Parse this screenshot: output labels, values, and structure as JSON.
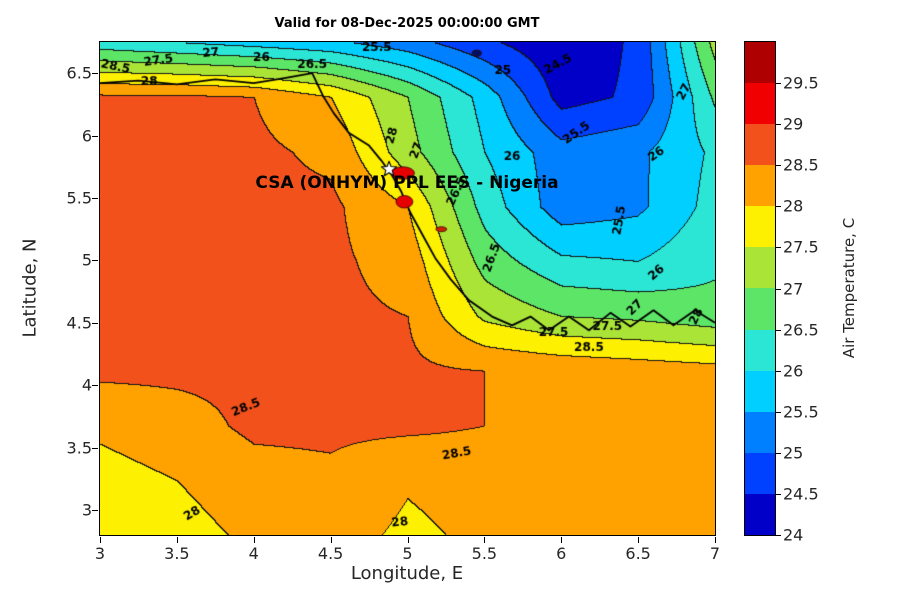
{
  "chart_data": {
    "type": "heatmap",
    "title": "Valid for 08-Dec-2025 00:00:00 GMT",
    "annotation": "CSA (ONHYM) PPL EES - Nigeria",
    "xlabel": "Longitude, E",
    "ylabel": "Latitude, N",
    "xlim": [
      3,
      7
    ],
    "ylim": [
      2.8,
      6.75
    ],
    "xticks": [
      3,
      3.5,
      4,
      4.5,
      5,
      5.5,
      6,
      6.5,
      7
    ],
    "yticks": [
      3,
      3.5,
      4,
      4.5,
      5,
      5.5,
      6,
      6.5
    ],
    "grid": {
      "lon": [
        3,
        3.5,
        4,
        4.5,
        5,
        5.5,
        6,
        6.5,
        7
      ],
      "lat": [
        6.75,
        6.31,
        5.87,
        5.43,
        4.99,
        4.56,
        4.12,
        3.68,
        3.24,
        2.8
      ],
      "temperature": [
        [
          26.2,
          26.0,
          25.8,
          25.6,
          25.2,
          24.6,
          24.1,
          24.6,
          27.2
        ],
        [
          28.6,
          28.6,
          28.5,
          28.0,
          27.0,
          25.8,
          24.3,
          24.6,
          26.6
        ],
        [
          28.6,
          28.6,
          28.6,
          28.4,
          27.2,
          26.0,
          25.2,
          25.4,
          26.1
        ],
        [
          28.6,
          28.6,
          28.6,
          28.6,
          28.0,
          26.3,
          25.2,
          25.4,
          26.2
        ],
        [
          28.6,
          28.6,
          28.6,
          28.6,
          28.3,
          26.8,
          26.1,
          26.0,
          26.4
        ],
        [
          28.6,
          28.6,
          28.6,
          28.6,
          28.5,
          27.4,
          27.0,
          26.9,
          26.7
        ],
        [
          28.6,
          28.6,
          28.6,
          28.6,
          28.6,
          28.5,
          28.4,
          28.3,
          28.2
        ],
        [
          28.1,
          28.3,
          28.6,
          28.6,
          28.6,
          28.5,
          28.3,
          28.2,
          28.2
        ],
        [
          27.8,
          28.0,
          28.3,
          28.4,
          28.05,
          28.2,
          28.2,
          28.2,
          28.2
        ],
        [
          27.6,
          27.8,
          28.1,
          28.2,
          27.9,
          28.1,
          28.2,
          28.2,
          28.2
        ]
      ]
    },
    "levels": [
      24,
      24.5,
      25,
      25.5,
      26,
      26.5,
      27,
      27.5,
      28,
      28.5,
      29,
      29.5,
      30
    ],
    "level_colors": [
      "#0000C8",
      "#0040FF",
      "#0080FF",
      "#00CFFF",
      "#2BE6D5",
      "#5CE566",
      "#AAE437",
      "#FDF000",
      "#FFA200",
      "#F2511B",
      "#F00000",
      "#AE0000"
    ],
    "contour_line_color": "#141414",
    "colorbar": {
      "label": "Air Temperature, C",
      "range": [
        24,
        30
      ],
      "ticks": [
        24,
        24.5,
        25,
        25.5,
        26,
        26.5,
        27,
        27.5,
        28,
        28.5,
        29,
        29.5
      ]
    },
    "contour_labels": [
      {
        "text": "28.5",
        "lon": 3.1,
        "lat": 6.55,
        "rot": 12
      },
      {
        "text": "28",
        "lon": 3.32,
        "lat": 6.43,
        "rot": 0
      },
      {
        "text": "27.5",
        "lon": 3.38,
        "lat": 6.6,
        "rot": -8
      },
      {
        "text": "27",
        "lon": 3.72,
        "lat": 6.66,
        "rot": -5
      },
      {
        "text": "26",
        "lon": 4.05,
        "lat": 6.62,
        "rot": 0
      },
      {
        "text": "26.5",
        "lon": 4.38,
        "lat": 6.57,
        "rot": 0
      },
      {
        "text": "25.5",
        "lon": 4.8,
        "lat": 6.7,
        "rot": 0
      },
      {
        "text": "25",
        "lon": 5.62,
        "lat": 6.52,
        "rot": 0
      },
      {
        "text": "24.5",
        "lon": 5.98,
        "lat": 6.57,
        "rot": -28
      },
      {
        "text": "27",
        "lon": 6.8,
        "lat": 6.35,
        "rot": -62
      },
      {
        "text": "25.5",
        "lon": 6.1,
        "lat": 6.02,
        "rot": -35
      },
      {
        "text": "26",
        "lon": 5.68,
        "lat": 5.83,
        "rot": 0
      },
      {
        "text": "26",
        "lon": 6.62,
        "lat": 5.85,
        "rot": -35
      },
      {
        "text": "28",
        "lon": 4.9,
        "lat": 6.0,
        "rot": -75
      },
      {
        "text": "27",
        "lon": 5.06,
        "lat": 5.88,
        "rot": -70
      },
      {
        "text": "26.5",
        "lon": 5.32,
        "lat": 5.55,
        "rot": -65
      },
      {
        "text": "25.5",
        "lon": 6.38,
        "lat": 5.32,
        "rot": -80
      },
      {
        "text": "26",
        "lon": 6.62,
        "lat": 4.9,
        "rot": -40
      },
      {
        "text": "26.5",
        "lon": 5.55,
        "lat": 5.02,
        "rot": -70
      },
      {
        "text": "27",
        "lon": 6.48,
        "lat": 4.62,
        "rot": -45
      },
      {
        "text": "27.5",
        "lon": 6.3,
        "lat": 4.47,
        "rot": 0
      },
      {
        "text": "28",
        "lon": 6.88,
        "lat": 4.55,
        "rot": -65
      },
      {
        "text": "27.5",
        "lon": 5.95,
        "lat": 4.42,
        "rot": 0
      },
      {
        "text": "28.5",
        "lon": 6.18,
        "lat": 4.3,
        "rot": 0
      },
      {
        "text": "28.5",
        "lon": 3.95,
        "lat": 3.82,
        "rot": -22
      },
      {
        "text": "28.5",
        "lon": 5.32,
        "lat": 3.45,
        "rot": -10
      },
      {
        "text": "28",
        "lon": 3.6,
        "lat": 2.97,
        "rot": -32
      },
      {
        "text": "28",
        "lon": 4.95,
        "lat": 2.9,
        "rot": -6
      }
    ],
    "coastline": [
      [
        3.0,
        6.42
      ],
      [
        3.25,
        6.44
      ],
      [
        3.5,
        6.41
      ],
      [
        3.75,
        6.45
      ],
      [
        4.0,
        6.42
      ],
      [
        4.2,
        6.46
      ],
      [
        4.38,
        6.5
      ],
      [
        4.45,
        6.32
      ],
      [
        4.52,
        6.18
      ],
      [
        4.62,
        6.02
      ],
      [
        4.75,
        5.92
      ],
      [
        4.83,
        5.8
      ],
      [
        4.9,
        5.68
      ],
      [
        4.96,
        5.55
      ],
      [
        5.02,
        5.38
      ],
      [
        5.1,
        5.2
      ],
      [
        5.18,
        5.02
      ],
      [
        5.28,
        4.85
      ],
      [
        5.4,
        4.68
      ],
      [
        5.55,
        4.55
      ],
      [
        5.68,
        4.48
      ],
      [
        5.8,
        4.55
      ],
      [
        5.92,
        4.44
      ],
      [
        6.05,
        4.55
      ],
      [
        6.18,
        4.44
      ],
      [
        6.32,
        4.58
      ],
      [
        6.45,
        4.47
      ],
      [
        6.6,
        4.6
      ],
      [
        6.73,
        4.48
      ],
      [
        6.87,
        4.6
      ],
      [
        7.0,
        4.5
      ]
    ],
    "hot_spots": [
      {
        "lon": 4.97,
        "lat": 5.7,
        "rx": 0.075,
        "ry": 0.05,
        "color": "#E60000"
      },
      {
        "lon": 4.98,
        "lat": 5.47,
        "rx": 0.055,
        "ry": 0.05,
        "color": "#E60000"
      },
      {
        "lon": 5.22,
        "lat": 5.25,
        "rx": 0.035,
        "ry": 0.02,
        "color": "#CC2200"
      },
      {
        "lon": 5.45,
        "lat": 6.66,
        "rx": 0.03,
        "ry": 0.025,
        "color": "#001060"
      }
    ],
    "site_marker": {
      "lon": 4.88,
      "lat": 5.73,
      "symbol": "star"
    }
  }
}
